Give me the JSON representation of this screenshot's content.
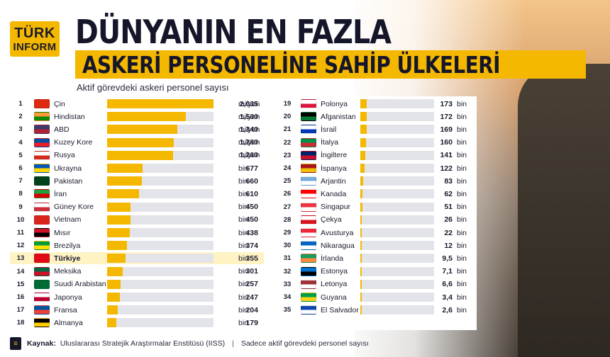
{
  "logo": {
    "line1": "TÜRK",
    "line2": "INFORM"
  },
  "title_line1": "DÜNYANIN EN FAZLA",
  "title_line2": "ASKERİ PERSONELİNE SAHİP ÜLKELERİ",
  "subtitle": "Aktif görevdeki askeri personel sayısı",
  "colors": {
    "accent": "#f5b800",
    "dark": "#15162a",
    "track": "#e3e4ea",
    "highlight": "#fff3c4"
  },
  "chart_data": {
    "type": "bar",
    "title": "DÜNYANIN EN FAZLA ASKERİ PERSONELİNE SAHİP ÜLKELERİ",
    "subtitle": "Aktif görevdeki askeri personel sayısı",
    "orientation": "horizontal",
    "highlighted": "Türkiye",
    "left": [
      {
        "rank": "1",
        "country": "Çin",
        "value": 2035000,
        "label": "2,035",
        "unit": "milyon",
        "flag": "china-flag"
      },
      {
        "rank": "2",
        "country": "Hindistan",
        "value": 1500000,
        "label": "1,500",
        "unit": "milyon",
        "flag": "india-flag"
      },
      {
        "rank": "3",
        "country": "ABD",
        "value": 1340000,
        "label": "1,340",
        "unit": "milyon",
        "flag": "usa-flag"
      },
      {
        "rank": "4",
        "country": "Kuzey Kore",
        "value": 1280000,
        "label": "1,280",
        "unit": "milyon",
        "flag": "north-korea-flag"
      },
      {
        "rank": "5",
        "country": "Rusya",
        "value": 1260000,
        "label": "1,260",
        "unit": "milyon",
        "flag": "russia-flag"
      },
      {
        "rank": "6",
        "country": "Ukrayna",
        "value": 677000,
        "label": "677",
        "unit": "bin",
        "flag": "ukraine-flag"
      },
      {
        "rank": "7",
        "country": "Pakistan",
        "value": 660000,
        "label": "660",
        "unit": "bin",
        "flag": "pakistan-flag"
      },
      {
        "rank": "8",
        "country": "İran",
        "value": 610000,
        "label": "610",
        "unit": "bin",
        "flag": "iran-flag"
      },
      {
        "rank": "9",
        "country": "Güney Kore",
        "value": 450000,
        "label": "450",
        "unit": "bin",
        "flag": "south-korea-flag"
      },
      {
        "rank": "10",
        "country": "Vietnam",
        "value": 450000,
        "label": "450",
        "unit": "bin",
        "flag": "vietnam-flag"
      },
      {
        "rank": "11",
        "country": "Mısır",
        "value": 438000,
        "label": "438",
        "unit": "bin",
        "flag": "egypt-flag"
      },
      {
        "rank": "12",
        "country": "Brezilya",
        "value": 374000,
        "label": "374",
        "unit": "bin",
        "flag": "brazil-flag"
      },
      {
        "rank": "13",
        "country": "Türkiye",
        "value": 355000,
        "label": "355",
        "unit": "bin",
        "flag": "turkey-flag"
      },
      {
        "rank": "14",
        "country": "Meksika",
        "value": 301000,
        "label": "301",
        "unit": "bin",
        "flag": "mexico-flag"
      },
      {
        "rank": "15",
        "country": "Suudi Arabistan",
        "value": 257000,
        "label": "257",
        "unit": "bin",
        "flag": "saudi-arabia-flag"
      },
      {
        "rank": "16",
        "country": "Japonya",
        "value": 247000,
        "label": "247",
        "unit": "bin",
        "flag": "japan-flag"
      },
      {
        "rank": "17",
        "country": "Fransa",
        "value": 204000,
        "label": "204",
        "unit": "bin",
        "flag": "france-flag"
      },
      {
        "rank": "18",
        "country": "Almanya",
        "value": 179000,
        "label": "179",
        "unit": "bin",
        "flag": "germany-flag"
      }
    ],
    "right": [
      {
        "rank": "19",
        "country": "Polonya",
        "value": 173000,
        "label": "173",
        "unit": "bin",
        "flag": "poland-flag"
      },
      {
        "rank": "20",
        "country": "Afganistan",
        "value": 172000,
        "label": "172",
        "unit": "bin",
        "flag": "afghanistan-flag"
      },
      {
        "rank": "21",
        "country": "İsrail",
        "value": 169000,
        "label": "169",
        "unit": "bin",
        "flag": "israel-flag"
      },
      {
        "rank": "22",
        "country": "İtalya",
        "value": 160000,
        "label": "160",
        "unit": "bin",
        "flag": "italy-flag"
      },
      {
        "rank": "23",
        "country": "İngiltere",
        "value": 141000,
        "label": "141",
        "unit": "bin",
        "flag": "uk-flag"
      },
      {
        "rank": "24",
        "country": "İspanya",
        "value": 122000,
        "label": "122",
        "unit": "bin",
        "flag": "spain-flag"
      },
      {
        "rank": "25",
        "country": "Arjantin",
        "value": 83000,
        "label": "83",
        "unit": "bin",
        "flag": "argentina-flag"
      },
      {
        "rank": "26",
        "country": "Kanada",
        "value": 62000,
        "label": "62",
        "unit": "bin",
        "flag": "canada-flag"
      },
      {
        "rank": "27",
        "country": "Singapur",
        "value": 51000,
        "label": "51",
        "unit": "bin",
        "flag": "singapore-flag"
      },
      {
        "rank": "28",
        "country": "Çekya",
        "value": 26000,
        "label": "26",
        "unit": "bin",
        "flag": "czechia-flag"
      },
      {
        "rank": "29",
        "country": "Avusturya",
        "value": 22000,
        "label": "22",
        "unit": "bin",
        "flag": "austria-flag"
      },
      {
        "rank": "30",
        "country": "Nikaragua",
        "value": 12000,
        "label": "12",
        "unit": "bin",
        "flag": "nicaragua-flag"
      },
      {
        "rank": "31",
        "country": "İrlanda",
        "value": 9500,
        "label": "9,5",
        "unit": "bin",
        "flag": "ireland-flag"
      },
      {
        "rank": "32",
        "country": "Estonya",
        "value": 7100,
        "label": "7,1",
        "unit": "bin",
        "flag": "estonia-flag"
      },
      {
        "rank": "33",
        "country": "Letonya",
        "value": 6600,
        "label": "6,6",
        "unit": "bin",
        "flag": "latvia-flag"
      },
      {
        "rank": "34",
        "country": "Guyana",
        "value": 3400,
        "label": "3,4",
        "unit": "bin",
        "flag": "guyana-flag"
      },
      {
        "rank": "35",
        "country": "El Salvador",
        "value": 2600,
        "label": "2,6",
        "unit": "bin",
        "flag": "el-salvador-flag"
      }
    ],
    "flag_colors": {
      "china-flag": [
        "#de2910",
        "#de2910"
      ],
      "india-flag": [
        "#ff9933",
        "#138808"
      ],
      "usa-flag": [
        "#3c3b6e",
        "#b22234"
      ],
      "north-korea-flag": [
        "#024fa2",
        "#ed1c27"
      ],
      "russia-flag": [
        "#ffffff",
        "#d52b1e"
      ],
      "ukraine-flag": [
        "#0057b7",
        "#ffd700"
      ],
      "pakistan-flag": [
        "#01411c",
        "#01411c"
      ],
      "iran-flag": [
        "#239f40",
        "#da0000"
      ],
      "south-korea-flag": [
        "#ffffff",
        "#cd2e3a"
      ],
      "vietnam-flag": [
        "#da251d",
        "#da251d"
      ],
      "egypt-flag": [
        "#ce1126",
        "#000000"
      ],
      "brazil-flag": [
        "#009c3b",
        "#ffdf00"
      ],
      "turkey-flag": [
        "#e30a17",
        "#e30a17"
      ],
      "mexico-flag": [
        "#006847",
        "#ce1126"
      ],
      "saudi-arabia-flag": [
        "#006c35",
        "#006c35"
      ],
      "japan-flag": [
        "#ffffff",
        "#bc002d"
      ],
      "france-flag": [
        "#0055a4",
        "#ef4135"
      ],
      "germany-flag": [
        "#000000",
        "#ffce00"
      ],
      "poland-flag": [
        "#ffffff",
        "#dc143c"
      ],
      "afghanistan-flag": [
        "#000000",
        "#007a36"
      ],
      "israel-flag": [
        "#ffffff",
        "#0038b8"
      ],
      "italy-flag": [
        "#009246",
        "#ce2b37"
      ],
      "uk-flag": [
        "#012169",
        "#c8102e"
      ],
      "spain-flag": [
        "#aa151b",
        "#f1bf00"
      ],
      "argentina-flag": [
        "#74acdf",
        "#ffffff"
      ],
      "canada-flag": [
        "#ff0000",
        "#ffffff"
      ],
      "singapore-flag": [
        "#ef3340",
        "#ffffff"
      ],
      "czechia-flag": [
        "#ffffff",
        "#d7141a"
      ],
      "austria-flag": [
        "#ed2939",
        "#ffffff"
      ],
      "nicaragua-flag": [
        "#0067c6",
        "#ffffff"
      ],
      "ireland-flag": [
        "#169b62",
        "#ff883e"
      ],
      "estonia-flag": [
        "#0072ce",
        "#000000"
      ],
      "latvia-flag": [
        "#9e3039",
        "#ffffff"
      ],
      "guyana-flag": [
        "#009e49",
        "#fcd116"
      ],
      "el-salvador-flag": [
        "#0f47af",
        "#ffffff"
      ]
    }
  },
  "footer": {
    "source_label": "Kaynak:",
    "source_text": "Uluslararası Stratejik Araştırmalar Enstitüsü (IISS)",
    "separator": "|",
    "note": "Sadece aktif görevdeki personel sayısı",
    "doc_icon": "document-icon"
  }
}
